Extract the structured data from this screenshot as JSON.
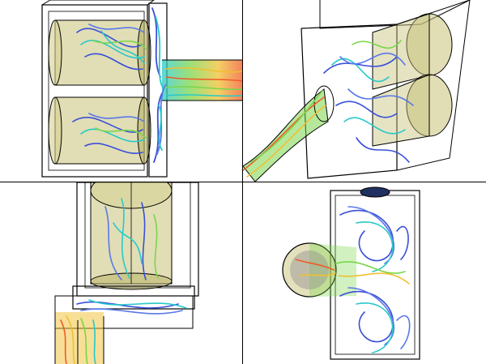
{
  "scene": {
    "colors": {
      "background": "#ffffff",
      "wireframe": "#000000",
      "canister_fill": "#c8c27a",
      "streamline_slow": "#3a4fd8",
      "streamline_mid": "#27c9c9",
      "streamline_fast": "#f05a28"
    },
    "viewports": [
      {
        "id": "top-left",
        "view": "side-elevation"
      },
      {
        "id": "top-right",
        "view": "perspective"
      },
      {
        "id": "bottom-left",
        "view": "front-elevation"
      },
      {
        "id": "bottom-right",
        "view": "top-plan"
      }
    ]
  }
}
